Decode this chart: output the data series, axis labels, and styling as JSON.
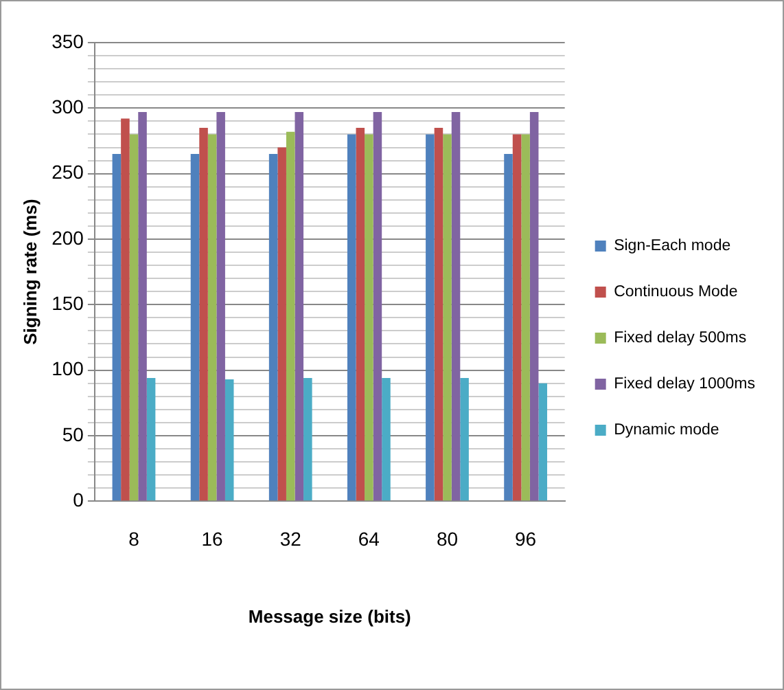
{
  "chart_data": {
    "type": "bar",
    "xlabel": "Message size (bits)",
    "ylabel": "Signing rate (ms)",
    "categories": [
      "8",
      "16",
      "32",
      "64",
      "80",
      "96"
    ],
    "series": [
      {
        "name": "Sign-Each mode",
        "color": "#4f81bd",
        "values": [
          265,
          265,
          265,
          280,
          280,
          265
        ]
      },
      {
        "name": "Continuous Mode",
        "color": "#c0504d",
        "values": [
          292,
          285,
          270,
          285,
          285,
          280
        ]
      },
      {
        "name": "Fixed delay 500ms",
        "color": "#9bbb59",
        "values": [
          280,
          280,
          282,
          280,
          280,
          280
        ]
      },
      {
        "name": "Fixed delay 1000ms",
        "color": "#8064a2",
        "values": [
          297,
          297,
          297,
          297,
          297,
          297
        ]
      },
      {
        "name": "Dynamic mode",
        "color": "#4bacc6",
        "values": [
          94,
          93,
          94,
          94,
          94,
          90
        ]
      }
    ],
    "ylim": [
      0,
      350
    ],
    "yticks": [
      0,
      {
        "value": 10,
        "label": null
      },
      {
        "value": 20,
        "label": null
      },
      {
        "value": 30,
        "label": null
      },
      {
        "value": 40,
        "label": null
      },
      50,
      {
        "value": 60,
        "label": null
      },
      {
        "value": 70,
        "label": null
      },
      {
        "value": 80,
        "label": null
      },
      {
        "value": 90,
        "label": null
      },
      100,
      {
        "value": 110,
        "label": null
      },
      {
        "value": 120,
        "label": null
      },
      {
        "value": 130,
        "label": null
      },
      {
        "value": 140,
        "label": null
      },
      150,
      {
        "value": 160,
        "label": null
      },
      {
        "value": 170,
        "label": null
      },
      {
        "value": 180,
        "label": null
      },
      {
        "value": 190,
        "label": null
      },
      200,
      {
        "value": 210,
        "label": null
      },
      {
        "value": 220,
        "label": null
      },
      {
        "value": 230,
        "label": null
      },
      {
        "value": 240,
        "label": null
      },
      250,
      {
        "value": 260,
        "label": null
      },
      {
        "value": 270,
        "label": null
      },
      {
        "value": 280,
        "label": null
      },
      {
        "value": 290,
        "label": null
      },
      300,
      {
        "value": 310,
        "label": null
      },
      {
        "value": 320,
        "label": null
      },
      {
        "value": 330,
        "label": null
      },
      {
        "value": 340,
        "label": null
      },
      350
    ],
    "grid": "y",
    "legend": "right"
  }
}
